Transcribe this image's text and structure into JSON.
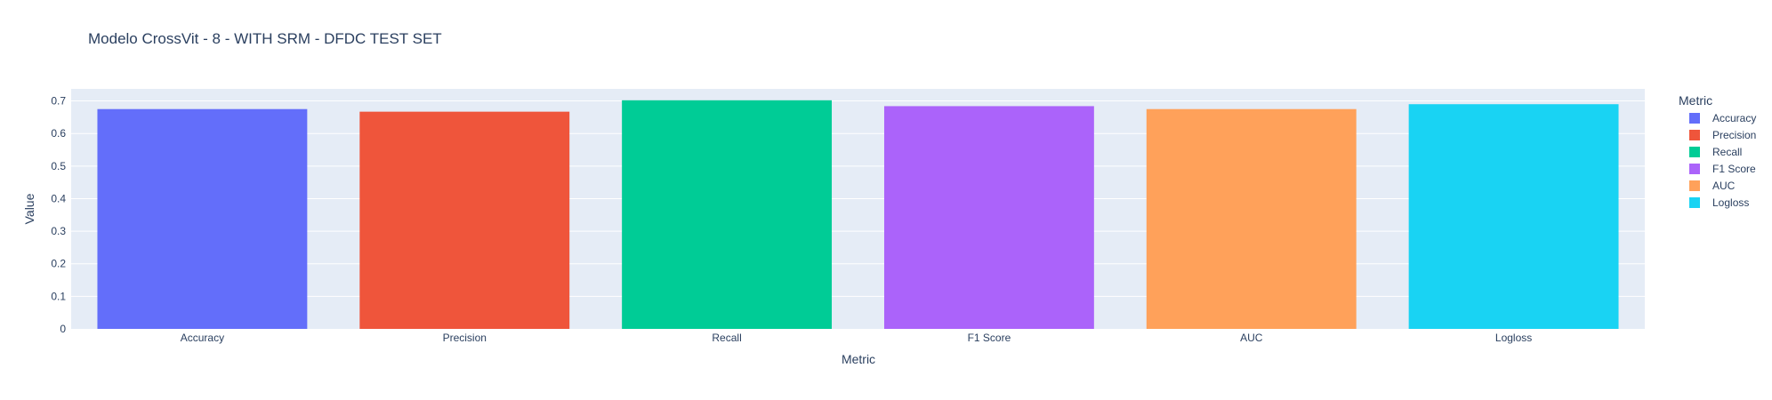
{
  "chart_data": {
    "type": "bar",
    "title": "Modelo CrossVit - 8 - WITH SRM - DFDC TEST SET",
    "xlabel": "Metric",
    "ylabel": "Value",
    "categories": [
      "Accuracy",
      "Precision",
      "Recall",
      "F1 Score",
      "AUC",
      "Logloss"
    ],
    "values": [
      0.675,
      0.667,
      0.702,
      0.684,
      0.675,
      0.69
    ],
    "colors": [
      "#636efa",
      "#ef553b",
      "#00cc96",
      "#ab63fa",
      "#ffa15a",
      "#19d3f3"
    ],
    "ylim": [
      0,
      0.737
    ],
    "yticks": [
      0,
      0.1,
      0.2,
      0.3,
      0.4,
      0.5,
      0.6,
      0.7
    ],
    "ytick_labels": [
      "0",
      "0.1",
      "0.2",
      "0.3",
      "0.4",
      "0.5",
      "0.6",
      "0.7"
    ],
    "grid": true,
    "plot_background": "#e5ecf6",
    "legend": {
      "title": "Metric",
      "placement": "right",
      "entries": [
        "Accuracy",
        "Precision",
        "Recall",
        "F1 Score",
        "AUC",
        "Logloss"
      ]
    }
  }
}
